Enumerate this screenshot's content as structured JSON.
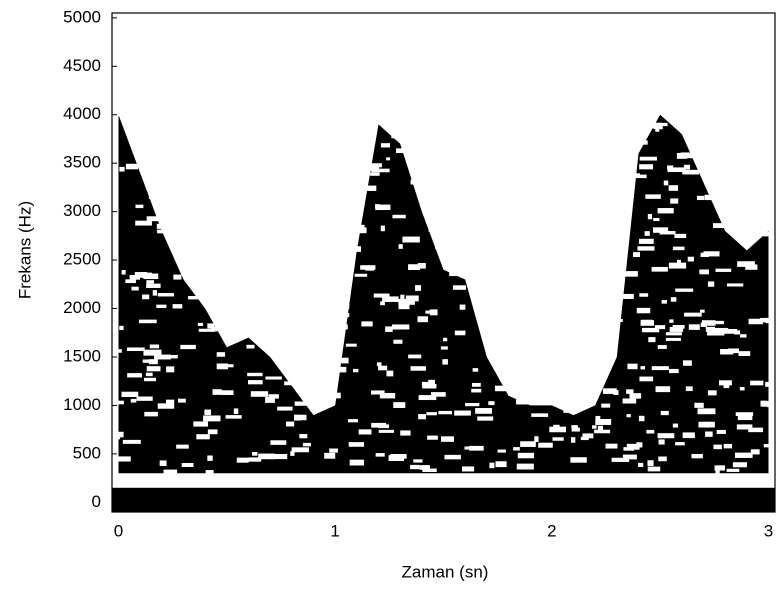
{
  "chart_data": {
    "type": "spectrogram",
    "xlabel": "Zaman (sn)",
    "ylabel": "Frekans (Hz)",
    "xlim": [
      -0.03,
      3.03
    ],
    "ylim": [
      -100,
      5050
    ],
    "xticks": [
      0,
      1,
      2,
      3
    ],
    "yticks": [
      0,
      500,
      1000,
      1500,
      2000,
      2500,
      3000,
      3500,
      4000,
      4500,
      5000
    ],
    "color": "#000000",
    "x": [
      0,
      0.1,
      0.2,
      0.3,
      0.4,
      0.5,
      0.6,
      0.7,
      0.8,
      0.9,
      1.0,
      1.1,
      1.2,
      1.3,
      1.4,
      1.5,
      1.6,
      1.7,
      1.8,
      1.9,
      2.0,
      2.1,
      2.2,
      2.3,
      2.4,
      2.5,
      2.6,
      2.7,
      2.8,
      2.9,
      3.0
    ],
    "upper": [
      4000,
      3400,
      2800,
      2300,
      2000,
      1600,
      1700,
      1500,
      1200,
      900,
      1000,
      2600,
      3900,
      3700,
      3000,
      2400,
      2300,
      1500,
      1100,
      1000,
      1000,
      900,
      1000,
      1500,
      3600,
      4000,
      3800,
      3300,
      2800,
      2600,
      2800
    ],
    "lower": 300,
    "base_band": [
      -100,
      150
    ]
  }
}
